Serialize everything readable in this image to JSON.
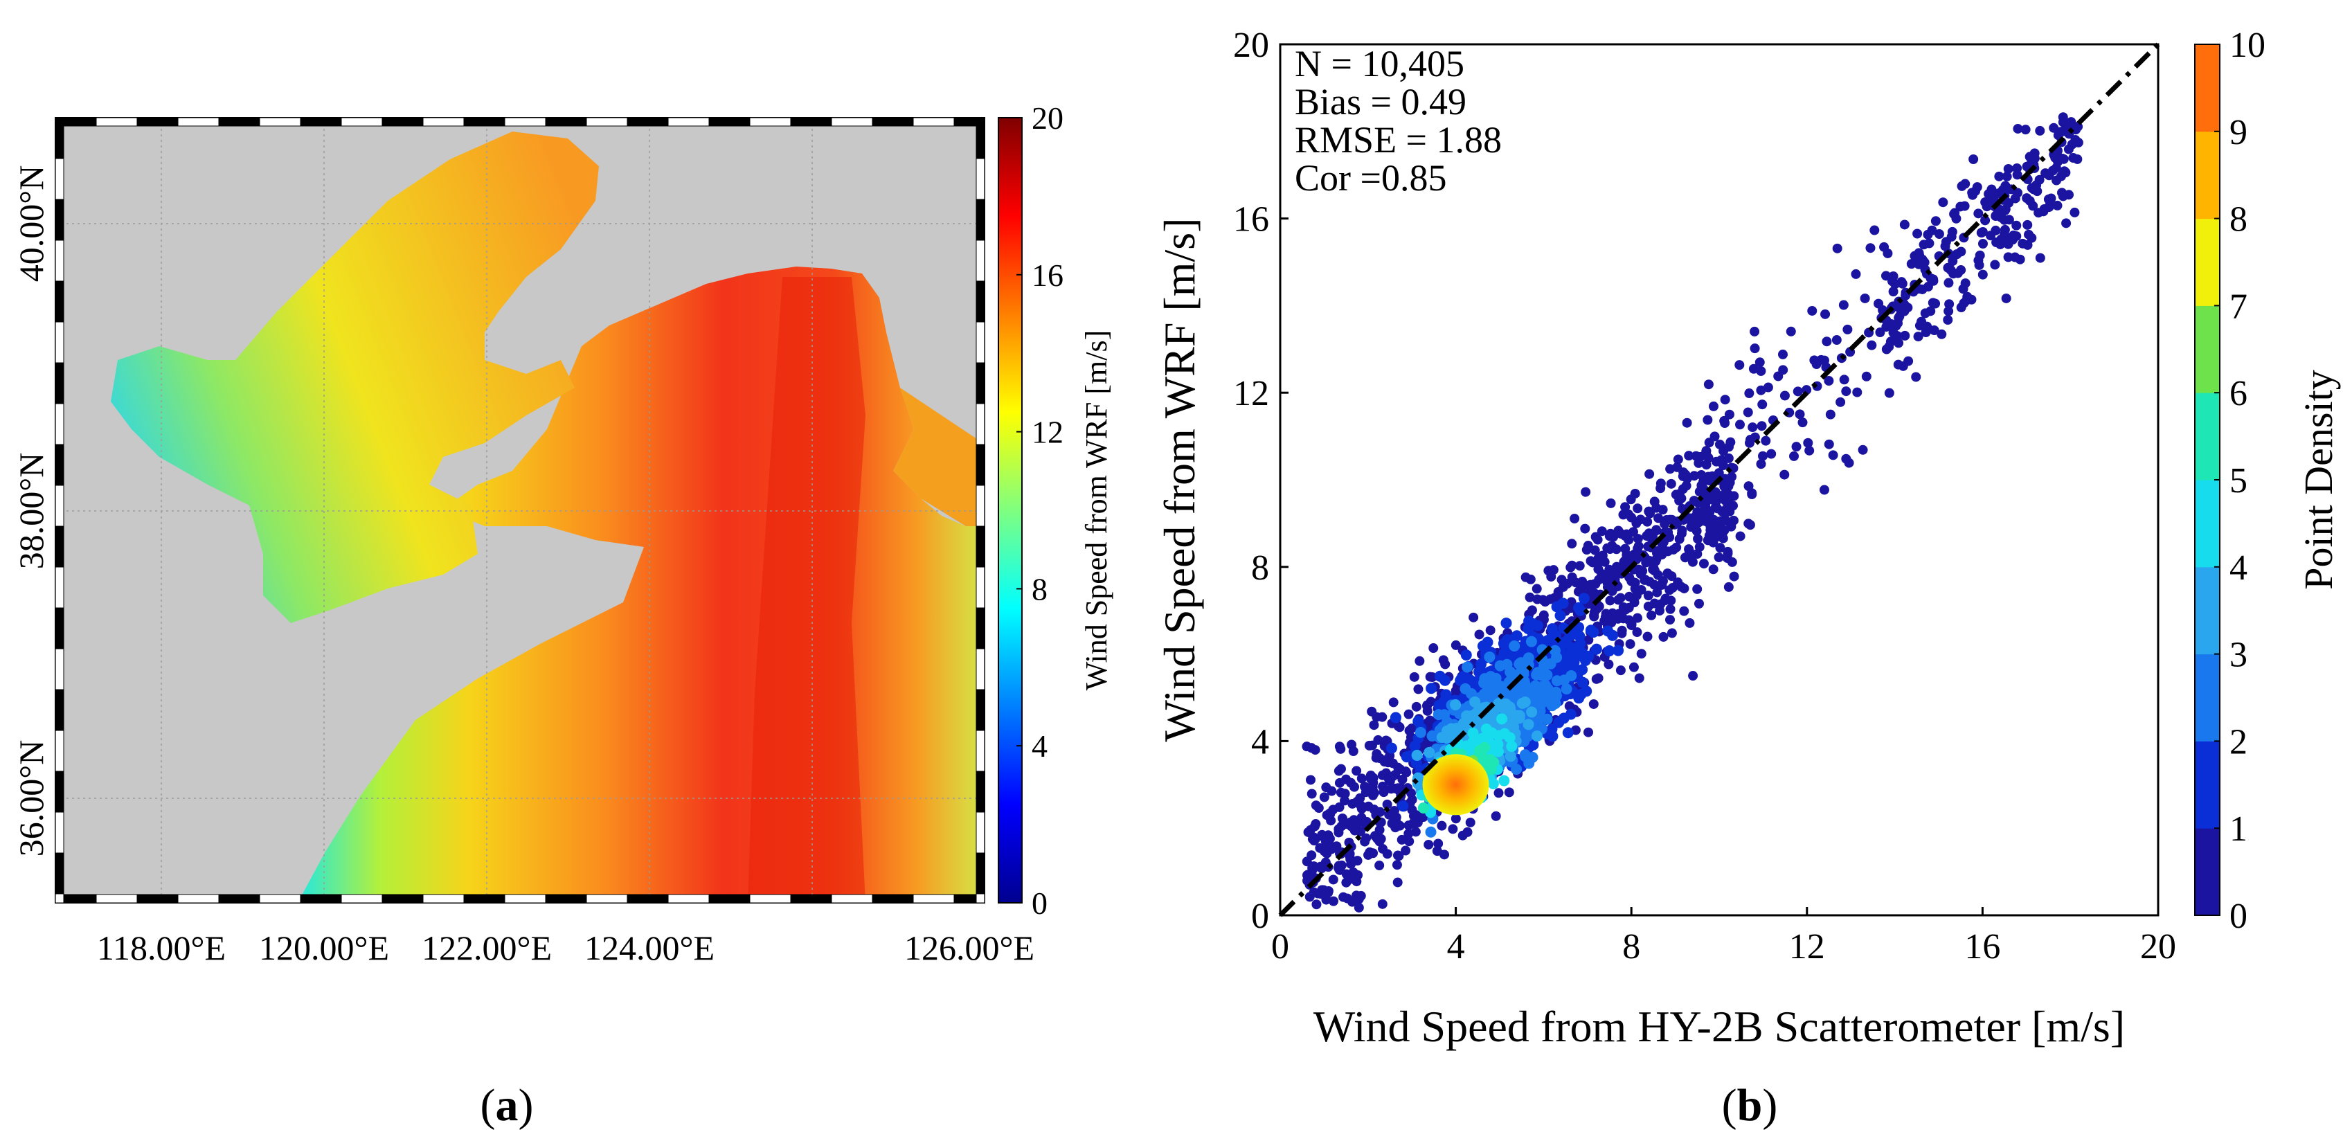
{
  "panel_a": {
    "caption": "(a)",
    "caption_letter": "a",
    "lon_ticks": [
      "118.00°E",
      "120.00°E",
      "122.00°E",
      "124.00°E",
      "126.00°E"
    ],
    "lat_ticks": [
      "36.00°N",
      "38.00°N",
      "40.00°N"
    ],
    "colorbar_label": "Wind Speed from WRF [m/s]",
    "colorbar_ticks": [
      "0",
      "4",
      "8",
      "12",
      "16",
      "20"
    ],
    "colors": {
      "land": "#c8c8c8",
      "sea_high": "#e8200a",
      "sea_mid": "#fa8a1e",
      "sea_low": "#1ee6e6"
    }
  },
  "panel_b": {
    "caption": "(b)",
    "caption_letter": "b",
    "stats": [
      "N = 10,405",
      "Bias = 0.49",
      "RMSE = 1.88",
      "Cor =0.85"
    ],
    "colorbar_label": "Point Density",
    "colorbar_ticks": [
      "0",
      "1",
      "2",
      "3",
      "4",
      "5",
      "6",
      "7",
      "8",
      "9",
      "10"
    ],
    "density_colors": [
      "#1a14a0",
      "#0a2fd6",
      "#1a78ee",
      "#2aa6ee",
      "#16dcee",
      "#1ee6b4",
      "#6ee24a",
      "#f0f00a",
      "#ffb400",
      "#ff6e0a"
    ]
  },
  "chart_data": [
    {
      "type": "heatmap",
      "title": "",
      "xlabel": "",
      "ylabel": "",
      "xlim": [
        117,
        126
      ],
      "ylim": [
        35.4,
        40.8
      ],
      "x_ticks": [
        118,
        120,
        122,
        124,
        126
      ],
      "y_ticks": [
        36,
        38,
        40
      ],
      "value_label": "Wind Speed from WRF [m/s]",
      "value_range": [
        0,
        20
      ],
      "colormap": "jet",
      "description_values": {
        "bohai_west_min": 8,
        "open_sea_max": 18
      }
    },
    {
      "type": "scatter",
      "title": "",
      "xlabel": "Wind Speed from HY-2B Scatterometer [m/s]",
      "ylabel": "Wind Speed from WRF [m/s]",
      "xlim": [
        0,
        20
      ],
      "ylim": [
        0,
        20
      ],
      "x_ticks": [
        0,
        4,
        8,
        12,
        16,
        20
      ],
      "y_ticks": [
        0,
        4,
        8,
        12,
        16,
        20
      ],
      "n": 10405,
      "bias": 0.49,
      "rmse": 1.88,
      "cor": 0.85,
      "reference_line": {
        "style": "dash-dot",
        "from": [
          0,
          0
        ],
        "to": [
          20,
          20
        ]
      },
      "density_range": [
        0,
        10
      ],
      "density_core": {
        "x": 4.0,
        "y": 3.0
      },
      "legend": "colorbar right"
    }
  ]
}
